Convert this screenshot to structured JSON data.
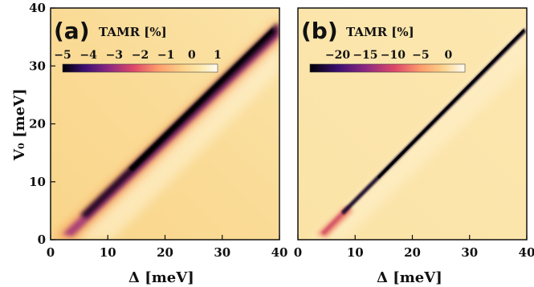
{
  "chart_data": [
    {
      "type": "heatmap",
      "panel_label": "(a)",
      "xlabel": "Δ [meV]",
      "ylabel": "V₀ [meV]",
      "xlim": [
        0,
        40
      ],
      "ylim": [
        0,
        40
      ],
      "xticks": [
        "0",
        "10",
        "20",
        "30",
        "40"
      ],
      "yticks": [
        "0",
        "10",
        "20",
        "30",
        "40"
      ],
      "colorbar": {
        "title": "TAMR [%]",
        "range": [
          -5,
          1
        ],
        "ticks": [
          "−5",
          "−4",
          "−3",
          "−2",
          "−1",
          "0",
          "1"
        ],
        "tick_values": [
          -5,
          -4,
          -3,
          -2,
          -1,
          0,
          1
        ]
      },
      "feature": {
        "description_values": "minimum band along V0 ≈ Δ",
        "min_value": -5,
        "band_center_line": [
          [
            0,
            0
          ],
          [
            40,
            37
          ]
        ],
        "band_width_meV": 3.2
      },
      "colors": [
        "#000004",
        "#3b0f70",
        "#8c2981",
        "#de4968",
        "#fe9f6d",
        "#fcd38a",
        "#fdeab0",
        "#fffdf3"
      ]
    },
    {
      "type": "heatmap",
      "panel_label": "(b)",
      "xlabel": "Δ [meV]",
      "ylabel": "",
      "xlim": [
        0,
        40
      ],
      "ylim": [
        0,
        40
      ],
      "xticks": [
        "0",
        "10",
        "20",
        "30",
        "40"
      ],
      "yticks": [],
      "colorbar": {
        "title": "TAMR [%]",
        "range": [
          -25,
          3
        ],
        "ticks": [
          "−20",
          "−15",
          "−10",
          "−5",
          "0"
        ],
        "tick_values": [
          -20,
          -15,
          -10,
          -5,
          0
        ]
      },
      "feature": {
        "min_value": -25,
        "band_center_line": [
          [
            4,
            1
          ],
          [
            40,
            37
          ]
        ],
        "band_width_meV": 0.9
      },
      "colors": [
        "#000004",
        "#3b0f70",
        "#8c2981",
        "#de4968",
        "#fe9f6d",
        "#fcd38a",
        "#fdeab0",
        "#fffdf3"
      ]
    }
  ]
}
